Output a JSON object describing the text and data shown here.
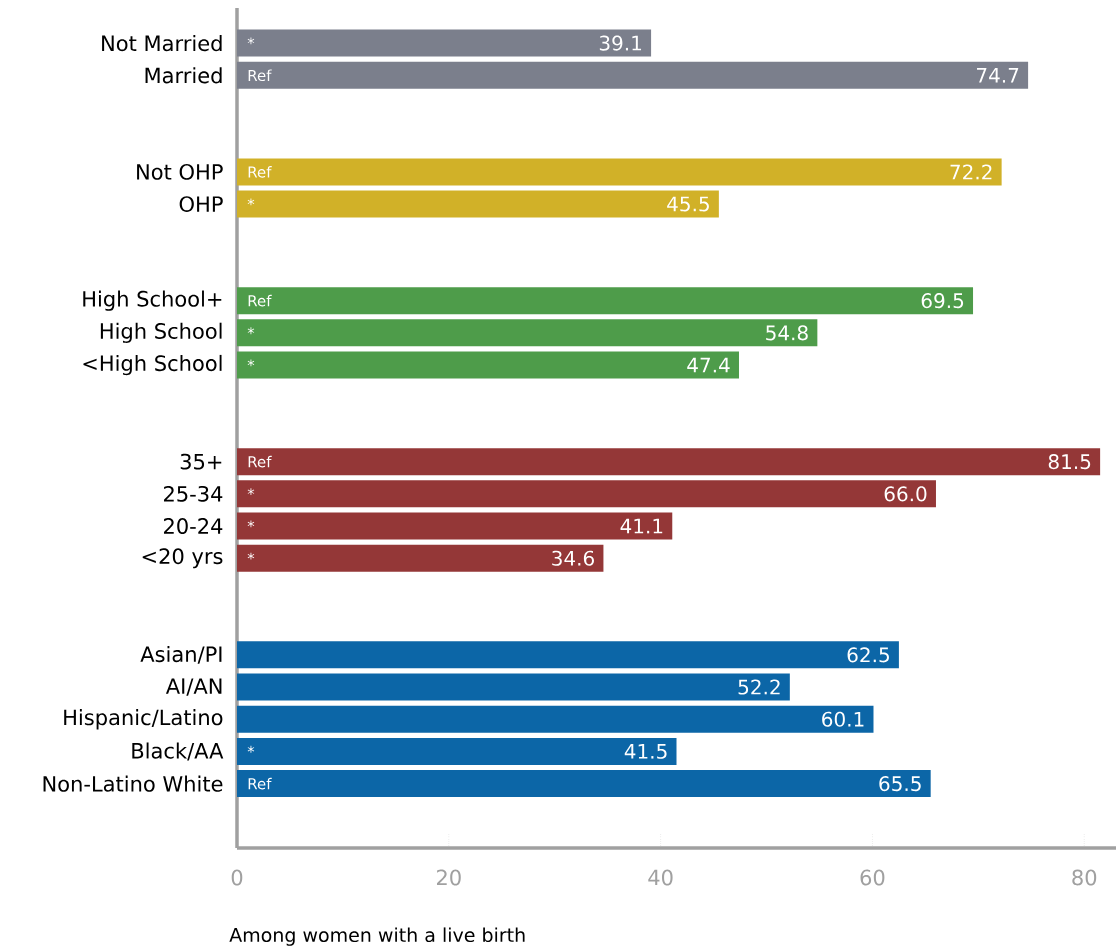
{
  "chart_data": {
    "type": "bar",
    "orientation": "horizontal",
    "xlabel": "Among women with a live birth",
    "categories": [
      "Not Married",
      "Married",
      null,
      null,
      "Not OHP",
      "OHP",
      null,
      null,
      "High School+",
      "High School",
      "<High School",
      null,
      null,
      "35+",
      "25-34",
      "20-24",
      "<20 yrs",
      null,
      null,
      "Asian/PI",
      "AI/AN",
      "Hispanic/Latino",
      "Black/AA",
      "Non-Latino White"
    ],
    "values": [
      39.1,
      74.7,
      null,
      null,
      72.2,
      45.5,
      null,
      null,
      69.5,
      54.8,
      47.4,
      null,
      null,
      81.5,
      66.0,
      41.1,
      34.6,
      null,
      null,
      62.5,
      52.2,
      60.1,
      41.5,
      65.5
    ],
    "value_labels": [
      "39.1",
      "74.7",
      null,
      null,
      "72.2",
      "45.5",
      null,
      null,
      "69.5",
      "54.8",
      "47.4",
      null,
      null,
      "81.5",
      "66.0",
      "41.1",
      "34.6",
      null,
      null,
      "62.5",
      "52.2",
      "60.1",
      "41.5",
      "65.5"
    ],
    "colors": [
      "#7b7f8c",
      "#7b7f8c",
      null,
      null,
      "#d1b128",
      "#d1b128",
      null,
      null,
      "#4e9c4a",
      "#4e9c4a",
      "#4e9c4a",
      null,
      null,
      "#943737",
      "#943737",
      "#943737",
      "#943737",
      null,
      null,
      "#0c66a7",
      "#0c66a7",
      "#0c66a7",
      "#0c66a7",
      "#0c66a7"
    ],
    "xlim": [
      0,
      83
    ],
    "xticks": [
      0,
      20,
      40,
      60,
      80
    ],
    "annotations": [
      {
        "text": "*",
        "y": "Not Married"
      },
      {
        "text": "Ref",
        "y": "Married"
      },
      {
        "text": "Ref",
        "y": "Not OHP"
      },
      {
        "text": "*",
        "y": "OHP"
      },
      {
        "text": "Ref",
        "y": "High School+"
      },
      {
        "text": "*",
        "y": "High School"
      },
      {
        "text": "*",
        "y": "<High School"
      },
      {
        "text": "Ref",
        "y": "35+"
      },
      {
        "text": "*",
        "y": "25-34"
      },
      {
        "text": "*",
        "y": "20-24"
      },
      {
        "text": "*",
        "y": "<20 yrs"
      },
      {
        "text": "*",
        "y": "Black/AA"
      },
      {
        "text": "Ref",
        "y": "Non-Latino White"
      }
    ]
  }
}
